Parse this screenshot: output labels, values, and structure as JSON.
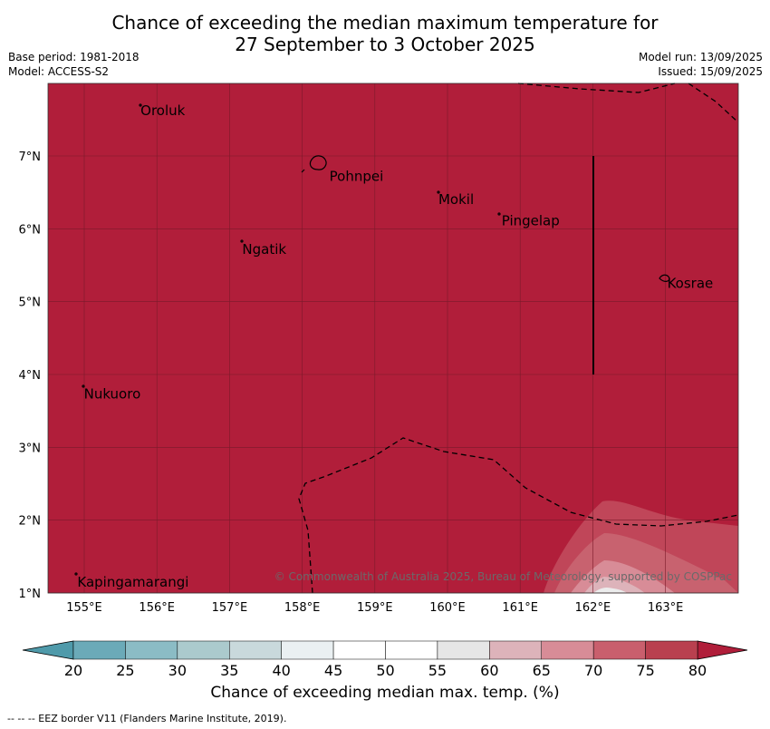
{
  "title_line1": "Chance of exceeding the median maximum temperature for",
  "title_line2": "27 September to 3 October 2025",
  "base_period": "Base period: 1981-2018",
  "model": "Model: ACCESS-S2",
  "model_run": "Model run: 13/09/2025",
  "issued": "Issued: 15/09/2025",
  "copyright": "© Commonwealth of Australia 2025, Bureau of Meteorology, supported by COSPPac",
  "colorbar_label": "Chance of exceeding median max. temp. (%)",
  "footnote": "--  --  -- EEZ border V11 (Flanders Marine Institute, 2019).",
  "lon_ticks": [
    "155°E",
    "156°E",
    "157°E",
    "158°E",
    "159°E",
    "160°E",
    "161°E",
    "162°E",
    "163°E"
  ],
  "lat_ticks": [
    "7°N",
    "6°N",
    "5°N",
    "4°N",
    "3°N",
    "2°N",
    "1°N"
  ],
  "places": [
    {
      "name": "Oroluk",
      "lon": 155.75,
      "lat": 7.62
    },
    {
      "name": "Pohnpei",
      "lon": 158.35,
      "lat": 6.72
    },
    {
      "name": "Mokil",
      "lon": 159.85,
      "lat": 6.4
    },
    {
      "name": "Pingelap",
      "lon": 160.72,
      "lat": 6.11
    },
    {
      "name": "Ngatik",
      "lon": 157.15,
      "lat": 5.72
    },
    {
      "name": "Kosrae",
      "lon": 163.0,
      "lat": 5.25
    },
    {
      "name": "Nukuoro",
      "lon": 154.97,
      "lat": 3.73
    },
    {
      "name": "Kapingamarangi",
      "lon": 154.88,
      "lat": 1.15
    }
  ],
  "colorbar": {
    "ticks": [
      "20",
      "25",
      "30",
      "35",
      "40",
      "45",
      "50",
      "55",
      "60",
      "65",
      "70",
      "75",
      "80"
    ],
    "colors": [
      "#6baab8",
      "#8bbcc5",
      "#abcacd",
      "#c9d9dc",
      "#eaf0f2",
      "#ffffff",
      "#ffffff",
      "#e6e6e6",
      "#ddb3ba",
      "#d88c97",
      "#c95f6d",
      "#b9404f"
    ],
    "under_color": "#4f9aaa",
    "over_color": "#b01e3a"
  },
  "field_color": "#b11e3a"
}
